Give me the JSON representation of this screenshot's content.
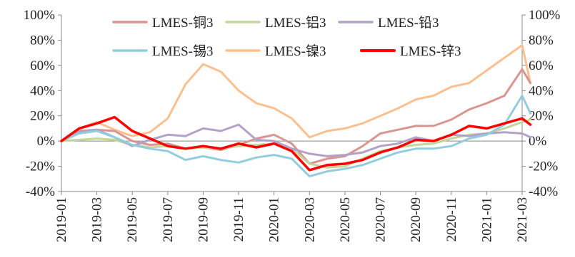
{
  "chart_data": {
    "type": "line",
    "title": "",
    "xlabel": "",
    "ylabel": "",
    "ylim": [
      -40,
      100
    ],
    "y_ticks": [
      "100%",
      "80%",
      "60%",
      "40%",
      "20%",
      "0%",
      "-20%",
      "-40%"
    ],
    "y2_ticks": [
      "100%",
      "80%",
      "60%",
      "40%",
      "20%",
      "0%",
      "-20%",
      "-40%"
    ],
    "x_ticks": [
      "2019-01",
      "2019-03",
      "2019-05",
      "2019-07",
      "2019-09",
      "2019-11",
      "2020-01",
      "2020-03",
      "2020-05",
      "2020-07",
      "2020-09",
      "2020-11",
      "2021-01",
      "2021-03"
    ],
    "grid": false,
    "legend": "top",
    "series": [
      {
        "name": "LMES-铜3",
        "color": "#d9958f",
        "width": 3,
        "points": [
          [
            "2019-01",
            0
          ],
          [
            "2019-02",
            8
          ],
          [
            "2019-03",
            9
          ],
          [
            "2019-04",
            8
          ],
          [
            "2019-05",
            0
          ],
          [
            "2019-06",
            -3
          ],
          [
            "2019-07",
            -2
          ],
          [
            "2019-08",
            -6
          ],
          [
            "2019-09",
            -5
          ],
          [
            "2019-10",
            -7
          ],
          [
            "2019-11",
            -3
          ],
          [
            "2019-12",
            2
          ],
          [
            "2020-01",
            5
          ],
          [
            "2020-02",
            -2
          ],
          [
            "2020-03",
            -18
          ],
          [
            "2020-04",
            -14
          ],
          [
            "2020-05",
            -12
          ],
          [
            "2020-06",
            -4
          ],
          [
            "2020-07",
            6
          ],
          [
            "2020-08",
            9
          ],
          [
            "2020-09",
            12
          ],
          [
            "2020-10",
            12
          ],
          [
            "2020-11",
            17
          ],
          [
            "2020-12",
            25
          ],
          [
            "2021-01",
            30
          ],
          [
            "2021-02",
            36
          ],
          [
            "2021-03",
            57
          ],
          [
            "2021-03-15",
            46
          ]
        ]
      },
      {
        "name": "LMES-铝3",
        "color": "#c3d69b",
        "width": 3,
        "points": [
          [
            "2019-01",
            0
          ],
          [
            "2019-02",
            1
          ],
          [
            "2019-03",
            2
          ],
          [
            "2019-04",
            1
          ],
          [
            "2019-05",
            -3
          ],
          [
            "2019-06",
            -5
          ],
          [
            "2019-07",
            -4
          ],
          [
            "2019-08",
            -6
          ],
          [
            "2019-09",
            -5
          ],
          [
            "2019-10",
            -6
          ],
          [
            "2019-11",
            -4
          ],
          [
            "2019-12",
            -3
          ],
          [
            "2020-01",
            -2
          ],
          [
            "2020-02",
            -6
          ],
          [
            "2020-03",
            -18
          ],
          [
            "2020-04",
            -21
          ],
          [
            "2020-05",
            -20
          ],
          [
            "2020-06",
            -14
          ],
          [
            "2020-07",
            -8
          ],
          [
            "2020-08",
            -5
          ],
          [
            "2020-09",
            -3
          ],
          [
            "2020-10",
            -2
          ],
          [
            "2020-11",
            2
          ],
          [
            "2020-12",
            5
          ],
          [
            "2021-01",
            6
          ],
          [
            "2021-02",
            10
          ],
          [
            "2021-03",
            15
          ],
          [
            "2021-03-15",
            17
          ]
        ]
      },
      {
        "name": "LMES-铅3",
        "color": "#b3a2c7",
        "width": 3,
        "points": [
          [
            "2019-01",
            0
          ],
          [
            "2019-02",
            7
          ],
          [
            "2019-03",
            9
          ],
          [
            "2019-04",
            3
          ],
          [
            "2019-05",
            -4
          ],
          [
            "2019-06",
            1
          ],
          [
            "2019-07",
            5
          ],
          [
            "2019-08",
            4
          ],
          [
            "2019-09",
            10
          ],
          [
            "2019-10",
            8
          ],
          [
            "2019-11",
            13
          ],
          [
            "2019-12",
            1
          ],
          [
            "2020-01",
            0
          ],
          [
            "2020-02",
            -6
          ],
          [
            "2020-03",
            -10
          ],
          [
            "2020-04",
            -12
          ],
          [
            "2020-05",
            -11
          ],
          [
            "2020-06",
            -9
          ],
          [
            "2020-07",
            -4
          ],
          [
            "2020-08",
            -2
          ],
          [
            "2020-09",
            3
          ],
          [
            "2020-10",
            0
          ],
          [
            "2020-11",
            5
          ],
          [
            "2020-12",
            4
          ],
          [
            "2021-01",
            6
          ],
          [
            "2021-02",
            7
          ],
          [
            "2021-03",
            6
          ],
          [
            "2021-03-15",
            3
          ]
        ]
      },
      {
        "name": "LMES-锡3",
        "color": "#93cddd",
        "width": 3,
        "points": [
          [
            "2019-01",
            0
          ],
          [
            "2019-02",
            6
          ],
          [
            "2019-03",
            8
          ],
          [
            "2019-04",
            3
          ],
          [
            "2019-05",
            -3
          ],
          [
            "2019-06",
            -6
          ],
          [
            "2019-07",
            -8
          ],
          [
            "2019-08",
            -15
          ],
          [
            "2019-09",
            -12
          ],
          [
            "2019-10",
            -15
          ],
          [
            "2019-11",
            -17
          ],
          [
            "2019-12",
            -13
          ],
          [
            "2020-01",
            -11
          ],
          [
            "2020-02",
            -14
          ],
          [
            "2020-03",
            -28
          ],
          [
            "2020-04",
            -24
          ],
          [
            "2020-05",
            -22
          ],
          [
            "2020-06",
            -19
          ],
          [
            "2020-07",
            -14
          ],
          [
            "2020-08",
            -9
          ],
          [
            "2020-09",
            -6
          ],
          [
            "2020-10",
            -6
          ],
          [
            "2020-11",
            -4
          ],
          [
            "2020-12",
            2
          ],
          [
            "2021-01",
            5
          ],
          [
            "2021-02",
            13
          ],
          [
            "2021-03",
            36
          ],
          [
            "2021-03-15",
            22
          ]
        ]
      },
      {
        "name": "LMES-镍3",
        "color": "#fac090",
        "width": 3,
        "points": [
          [
            "2019-01",
            0
          ],
          [
            "2019-02",
            10
          ],
          [
            "2019-03",
            15
          ],
          [
            "2019-04",
            9
          ],
          [
            "2019-05",
            4
          ],
          [
            "2019-06",
            7
          ],
          [
            "2019-07",
            18
          ],
          [
            "2019-08",
            45
          ],
          [
            "2019-09",
            61
          ],
          [
            "2019-10",
            55
          ],
          [
            "2019-11",
            40
          ],
          [
            "2019-12",
            30
          ],
          [
            "2020-01",
            26
          ],
          [
            "2020-02",
            18
          ],
          [
            "2020-03",
            3
          ],
          [
            "2020-04",
            8
          ],
          [
            "2020-05",
            10
          ],
          [
            "2020-06",
            14
          ],
          [
            "2020-07",
            20
          ],
          [
            "2020-08",
            26
          ],
          [
            "2020-09",
            33
          ],
          [
            "2020-10",
            36
          ],
          [
            "2020-11",
            43
          ],
          [
            "2020-12",
            46
          ],
          [
            "2021-01",
            56
          ],
          [
            "2021-02",
            66
          ],
          [
            "2021-03",
            76
          ],
          [
            "2021-03-15",
            46
          ]
        ]
      },
      {
        "name": "LMES-锌3",
        "color": "#ff0000",
        "width": 3.5,
        "points": [
          [
            "2019-01",
            0
          ],
          [
            "2019-02",
            10
          ],
          [
            "2019-03",
            14
          ],
          [
            "2019-04",
            19
          ],
          [
            "2019-05",
            8
          ],
          [
            "2019-06",
            2
          ],
          [
            "2019-07",
            -4
          ],
          [
            "2019-08",
            -6
          ],
          [
            "2019-09",
            -4
          ],
          [
            "2019-10",
            -6
          ],
          [
            "2019-11",
            -2
          ],
          [
            "2019-12",
            -5
          ],
          [
            "2020-01",
            -2
          ],
          [
            "2020-02",
            -8
          ],
          [
            "2020-03",
            -23
          ],
          [
            "2020-04",
            -19
          ],
          [
            "2020-05",
            -18
          ],
          [
            "2020-06",
            -15
          ],
          [
            "2020-07",
            -9
          ],
          [
            "2020-08",
            -5
          ],
          [
            "2020-09",
            1
          ],
          [
            "2020-10",
            0
          ],
          [
            "2020-11",
            5
          ],
          [
            "2020-12",
            12
          ],
          [
            "2021-01",
            10
          ],
          [
            "2021-02",
            14
          ],
          [
            "2021-03",
            18
          ],
          [
            "2021-03-15",
            13
          ]
        ]
      }
    ]
  }
}
